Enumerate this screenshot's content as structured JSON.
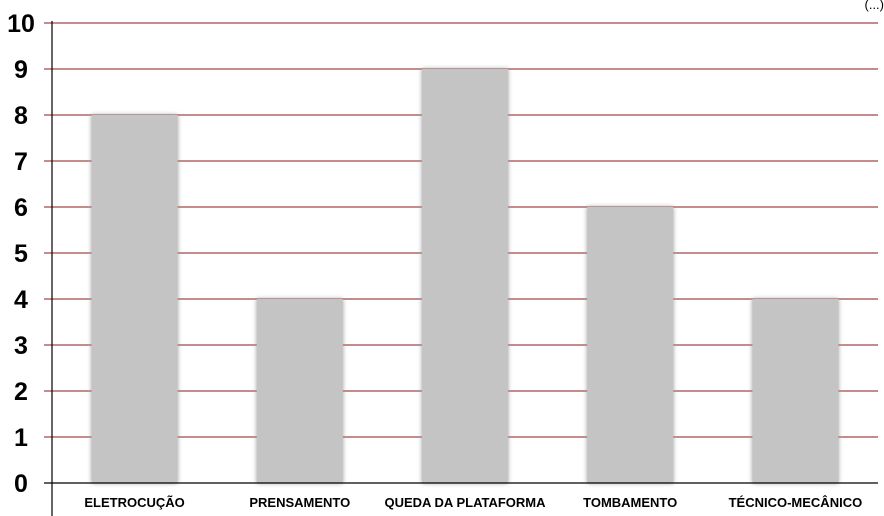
{
  "chart_data": {
    "type": "bar",
    "title": "",
    "xlabel": "",
    "ylabel": "",
    "categories": [
      "ELETROCUÇÃO",
      "PRENSAMENTO",
      "QUEDA DA PLATAFORMA",
      "TOMBAMENTO",
      "TÉCNICO-MECÂNICO"
    ],
    "values": [
      8,
      4,
      9,
      6,
      4
    ],
    "ylim": [
      0,
      10
    ],
    "yticks": [
      0,
      1,
      2,
      3,
      4,
      5,
      6,
      7,
      8,
      9,
      10
    ],
    "grid": true,
    "legend": "none",
    "corner_note": "(...)",
    "colors": {
      "bar": "#c4c4c4",
      "bar_shadow": "#9a9a9a",
      "gridline": "#8b1a1a",
      "axis": "#000000"
    }
  }
}
